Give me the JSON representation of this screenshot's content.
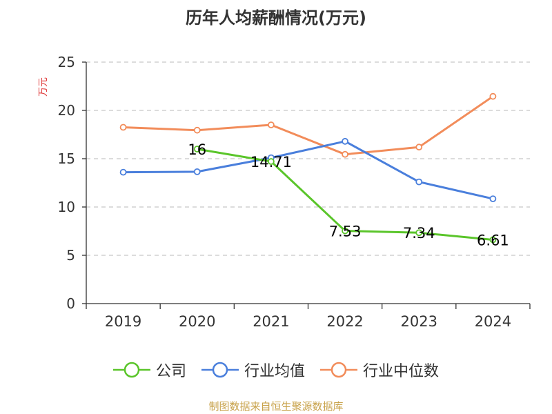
{
  "chart_data": {
    "type": "line",
    "title": "历年人均薪酬情况(万元)",
    "ylabel": "万元",
    "xlabel": "",
    "categories": [
      "2019",
      "2020",
      "2021",
      "2022",
      "2023",
      "2024"
    ],
    "ylim": [
      0,
      25
    ],
    "yticks": [
      0,
      5,
      10,
      15,
      20,
      25
    ],
    "grid": "horizontal dashed",
    "legend_position": "bottom",
    "series": [
      {
        "name": "公司",
        "color": "#5ac52a",
        "values": [
          null,
          16,
          14.71,
          7.53,
          7.34,
          6.61
        ],
        "labels": [
          "",
          "16",
          "14.71",
          "7.53",
          "7.34",
          "6.61"
        ]
      },
      {
        "name": "行业均值",
        "color": "#4a7fdc",
        "values": [
          13.6,
          13.65,
          15.1,
          16.8,
          12.6,
          10.85
        ]
      },
      {
        "name": "行业中位数",
        "color": "#f28c5a",
        "values": [
          18.25,
          17.95,
          18.5,
          15.45,
          16.2,
          21.45
        ]
      }
    ]
  },
  "source": "制图数据来自恒生聚源数据库"
}
